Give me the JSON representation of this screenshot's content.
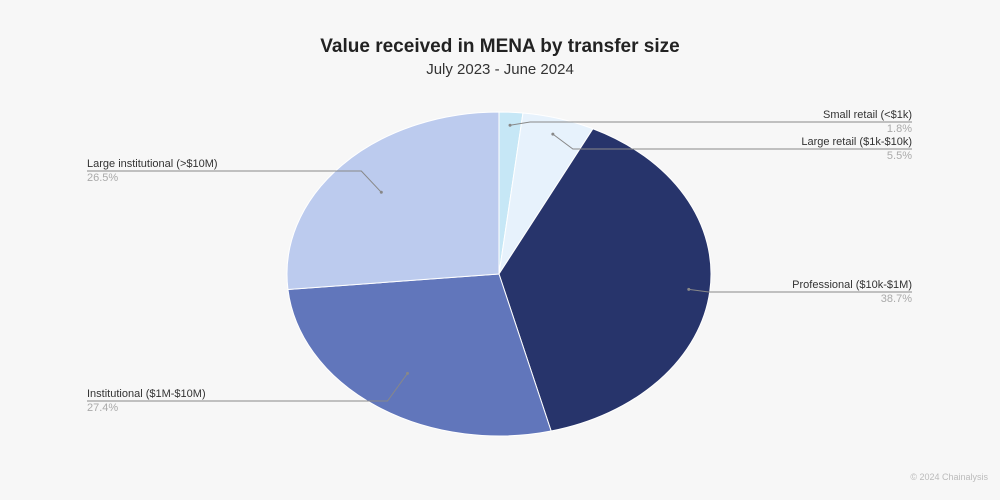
{
  "chart_data": {
    "type": "pie",
    "title": "Value received in MENA by transfer size",
    "subtitle": "July 2023 - June 2024",
    "start_angle": "12 o'clock",
    "direction": "clockwise",
    "slices": [
      {
        "label": "Small retail (<$1k)",
        "value": 1.8,
        "display": "1.8%",
        "color": "#c6e7f6"
      },
      {
        "label": "Large retail ($1k-$10k)",
        "value": 5.5,
        "display": "5.5%",
        "color": "#e7f2fc"
      },
      {
        "label": "Professional ($10k-$1M)",
        "value": 38.7,
        "display": "38.7%",
        "color": "#27346b"
      },
      {
        "label": "Institutional ($1M-$10M)",
        "value": 27.4,
        "display": "27.4%",
        "color": "#6176bb"
      },
      {
        "label": "Large institutional (>$10M)",
        "value": 26.5,
        "display": "26.5%",
        "color": "#bccbee"
      }
    ]
  },
  "footer": {
    "copyright": "© 2024 Chainalysis"
  }
}
